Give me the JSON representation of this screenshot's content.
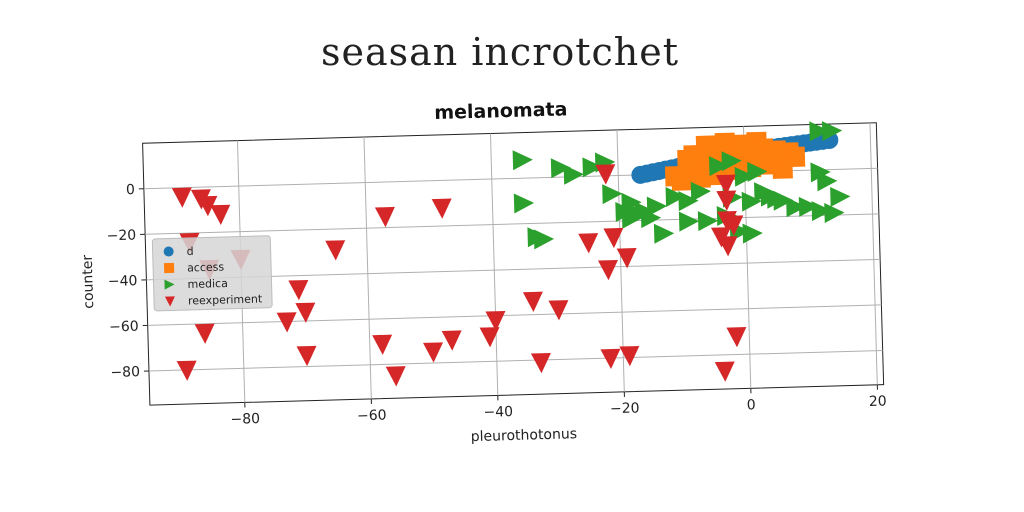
{
  "page_title": "seasan incrotchet",
  "chart_data": {
    "type": "scatter",
    "title": "melanomata",
    "xlabel": "pleurothotonus",
    "ylabel": "counter",
    "xlim": [
      -95,
      21
    ],
    "ylim": [
      -95,
      20
    ],
    "xticks": [
      -80,
      -60,
      -40,
      -20,
      0,
      20
    ],
    "yticks": [
      0,
      -20,
      -40,
      -60,
      -80
    ],
    "grid": true,
    "legend_position": "center-left",
    "series": [
      {
        "name": "d",
        "marker": "circle",
        "color": "#1f77b4",
        "points": [
          [
            -16.5,
            0
          ],
          [
            -15.5,
            0.5
          ],
          [
            -14.5,
            1
          ],
          [
            -13.5,
            1.5
          ],
          [
            -12.5,
            2
          ],
          [
            -11.5,
            2.5
          ],
          [
            -10.5,
            3
          ],
          [
            -9.5,
            3.5
          ],
          [
            -8.5,
            4
          ],
          [
            -7.5,
            4.5
          ],
          [
            -6.5,
            5
          ],
          [
            -5.5,
            5.5
          ],
          [
            -4.5,
            6
          ],
          [
            -3.5,
            6.5
          ],
          [
            -2.5,
            7
          ],
          [
            -1.5,
            7.5
          ],
          [
            -0.5,
            8
          ],
          [
            0.5,
            8.5
          ],
          [
            1.5,
            9
          ],
          [
            2.5,
            9.5
          ],
          [
            3.5,
            10
          ],
          [
            4.5,
            10.3
          ],
          [
            5.5,
            10.6
          ],
          [
            6.5,
            10.9
          ],
          [
            7.5,
            11.2
          ],
          [
            8.5,
            11.5
          ],
          [
            9.5,
            11.8
          ],
          [
            10.5,
            12.1
          ],
          [
            11.5,
            12.4
          ],
          [
            12.5,
            12.7
          ],
          [
            13.5,
            13
          ]
        ]
      },
      {
        "name": "access",
        "marker": "square",
        "color": "#ff7f0e",
        "points": [
          [
            -11,
            -1
          ],
          [
            -10,
            -3
          ],
          [
            -9,
            2
          ],
          [
            -8,
            8
          ],
          [
            -7,
            -2
          ],
          [
            -6,
            12
          ],
          [
            -5,
            6
          ],
          [
            -4,
            1
          ],
          [
            -3,
            13
          ],
          [
            -2,
            9
          ],
          [
            -1,
            4
          ],
          [
            0,
            7
          ],
          [
            1,
            2
          ],
          [
            2,
            13
          ],
          [
            3,
            10
          ],
          [
            4,
            5
          ],
          [
            5,
            9
          ],
          [
            6,
            1
          ],
          [
            7,
            8
          ],
          [
            8,
            6
          ],
          [
            -7,
            5
          ],
          [
            -5,
            -1
          ],
          [
            -3,
            4
          ],
          [
            1,
            8
          ],
          [
            3,
            3
          ],
          [
            -9,
            6
          ],
          [
            -2,
            1
          ],
          [
            5,
            6
          ],
          [
            0,
            12
          ],
          [
            -6,
            8
          ]
        ]
      },
      {
        "name": "medica",
        "marker": "triangle-right",
        "color": "#2ca02c",
        "points": [
          [
            12,
            17
          ],
          [
            14,
            17
          ],
          [
            -35,
            8
          ],
          [
            -29,
            4
          ],
          [
            -27,
            1
          ],
          [
            -24,
            4
          ],
          [
            -22,
            6
          ],
          [
            -21,
            -8
          ],
          [
            -19,
            -16
          ],
          [
            -35,
            -11
          ],
          [
            -18,
            -12
          ],
          [
            -17,
            -17
          ],
          [
            -16,
            -16
          ],
          [
            -14,
            -14
          ],
          [
            -11,
            -10
          ],
          [
            -9,
            -12
          ],
          [
            -7,
            -8
          ],
          [
            -18,
            -19
          ],
          [
            -15,
            -19
          ],
          [
            -13,
            -26
          ],
          [
            -9,
            -21
          ],
          [
            -6,
            -21
          ],
          [
            -3,
            -19
          ],
          [
            -4,
            3
          ],
          [
            -2,
            5
          ],
          [
            0,
            -2
          ],
          [
            2,
            0
          ],
          [
            4,
            -11
          ],
          [
            5,
            -12
          ],
          [
            6,
            -13
          ],
          [
            8,
            -16
          ],
          [
            10,
            -16
          ],
          [
            12,
            -18
          ],
          [
            14,
            -19
          ],
          [
            15,
            -12
          ],
          [
            12,
            -1
          ],
          [
            13,
            -5
          ],
          [
            -1,
            -26
          ],
          [
            1,
            -27
          ],
          [
            -33,
            -26
          ],
          [
            -32,
            -27
          ],
          [
            -2,
            -11
          ],
          [
            1,
            -13
          ],
          [
            3,
            -9
          ]
        ]
      },
      {
        "name": "reexperiment",
        "marker": "triangle-down",
        "color": "#d62728",
        "points": [
          [
            -89,
            -4
          ],
          [
            -86,
            -5
          ],
          [
            -85,
            -8
          ],
          [
            -83,
            -12
          ],
          [
            -88,
            -24
          ],
          [
            -85,
            -36
          ],
          [
            -80,
            -32
          ],
          [
            -65,
            -29
          ],
          [
            -57,
            -15
          ],
          [
            -48,
            -12
          ],
          [
            -71,
            -46
          ],
          [
            -70,
            -56
          ],
          [
            -73,
            -60
          ],
          [
            -86,
            -64
          ],
          [
            -70,
            -75
          ],
          [
            -58,
            -71
          ],
          [
            -56,
            -85
          ],
          [
            -50,
            -75
          ],
          [
            -47,
            -70
          ],
          [
            -41,
            -69
          ],
          [
            -40,
            -62
          ],
          [
            -34,
            -54
          ],
          [
            -30,
            -58
          ],
          [
            -33,
            -81
          ],
          [
            -89,
            -80
          ],
          [
            -25,
            -29
          ],
          [
            -22,
            -41
          ],
          [
            -21,
            -27
          ],
          [
            -19,
            -36
          ],
          [
            -22,
            -80
          ],
          [
            -19,
            -79
          ],
          [
            -22,
            1
          ],
          [
            -4,
            -28
          ],
          [
            -3,
            -21
          ],
          [
            -3,
            -32
          ],
          [
            -2,
            -23
          ],
          [
            -3,
            -12
          ],
          [
            -3,
            -5
          ],
          [
            -2,
            -72
          ],
          [
            -4,
            -87
          ]
        ]
      }
    ]
  }
}
